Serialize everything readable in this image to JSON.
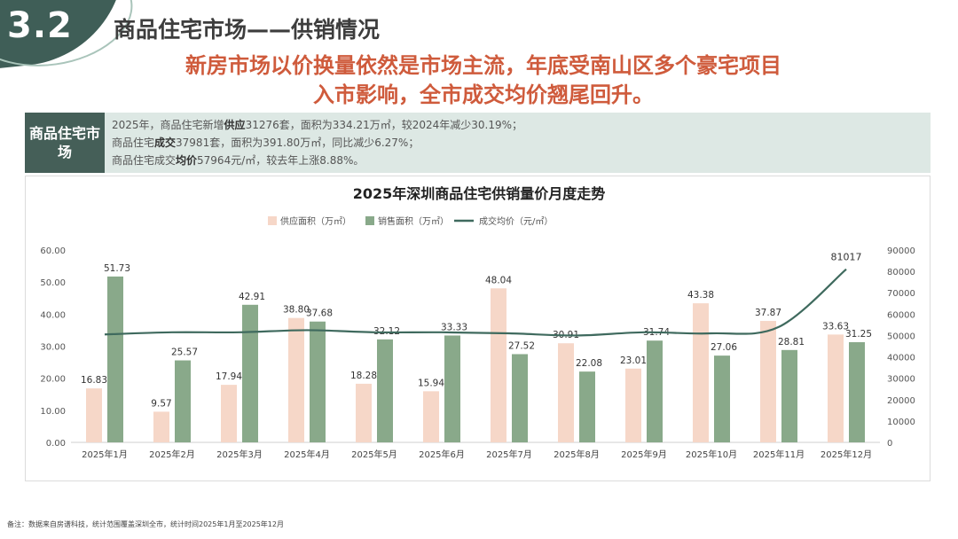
{
  "header": {
    "section_number": "3.2",
    "section_title": "商品住宅市场——供销情况",
    "headline_line1": "新房市场以价换量依然是市场主流，年底受南山区多个豪宅项目",
    "headline_line2": "入市影响，全市成交均价翘尾回升。"
  },
  "info": {
    "label": "商品住宅市场",
    "line1_a": "2025年，商品住宅新增",
    "line1_b": "供应",
    "line1_c": "31276套，面积为334.21万㎡，较2024年减少30.19%；",
    "line2_a": "商品住宅",
    "line2_b": "成交",
    "line2_c": "37981套，面积为391.80万㎡，同比减少6.27%；",
    "line3_a": "商品住宅成交",
    "line3_b": "均价",
    "line3_c": "57964元/㎡，较去年上涨8.88%。"
  },
  "footnote": "备注：数据来自房谱科技，统计范围覆盖深圳全市，统计时间2025年1月至2025年12月",
  "colors": {
    "supply": "#f6d7c8",
    "sales": "#89a98a",
    "price": "#3f6a5e",
    "brand": "#3f5e57",
    "headline": "#cf5b3c"
  },
  "chart_data": {
    "type": "bar",
    "title": "2025年深圳商品住宅供销量价月度走势",
    "categories": [
      "2025年1月",
      "2025年2月",
      "2025年3月",
      "2025年4月",
      "2025年5月",
      "2025年6月",
      "2025年7月",
      "2025年8月",
      "2025年9月",
      "2025年10月",
      "2025年11月",
      "2025年12月"
    ],
    "series": [
      {
        "name": "供应面积（万㎡）",
        "kind": "bar",
        "axis": "left",
        "values": [
          16.83,
          9.57,
          17.94,
          38.8,
          18.28,
          15.94,
          48.04,
          30.91,
          23.01,
          43.38,
          37.87,
          33.63
        ]
      },
      {
        "name": "销售面积（万㎡）",
        "kind": "bar",
        "axis": "left",
        "values": [
          51.73,
          25.57,
          42.91,
          37.68,
          32.12,
          33.33,
          27.52,
          22.08,
          31.74,
          27.06,
          28.81,
          31.25
        ]
      },
      {
        "name": "成交均价（元/㎡）",
        "kind": "line",
        "axis": "right",
        "values": [
          50500,
          51500,
          51500,
          52500,
          51500,
          51500,
          51000,
          50000,
          51500,
          51000,
          54000,
          81017
        ],
        "labeled_point": {
          "index": 11,
          "label": "81017"
        }
      }
    ],
    "y_left": {
      "min": 0,
      "max": 60,
      "ticks": [
        "0.00",
        "10.00",
        "20.00",
        "30.00",
        "40.00",
        "50.00",
        "60.00"
      ]
    },
    "y_right": {
      "min": 0,
      "max": 90000,
      "ticks": [
        "0",
        "10000",
        "20000",
        "30000",
        "40000",
        "50000",
        "60000",
        "70000",
        "80000",
        "90000"
      ]
    },
    "legend_position": "top-center",
    "grid": false
  }
}
